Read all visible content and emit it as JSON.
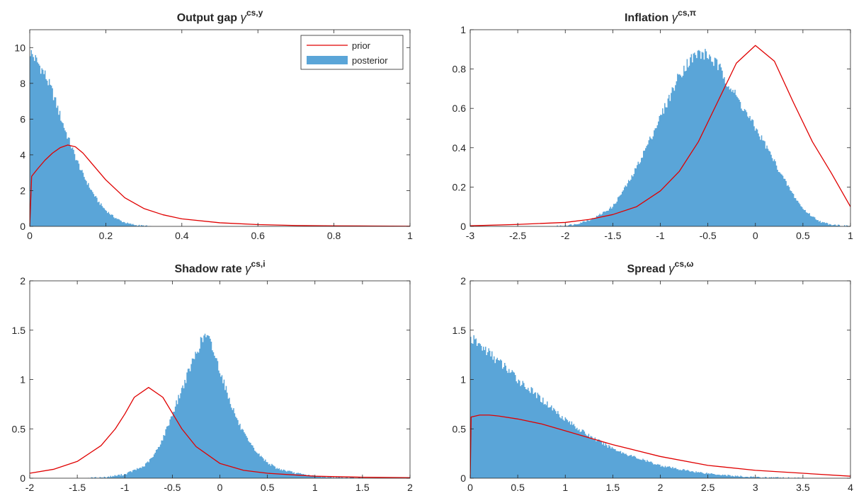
{
  "colors": {
    "prior": "#e00000",
    "posterior": "#5aa5d8",
    "axis": "#262626",
    "background": "#ffffff"
  },
  "chart_data": [
    {
      "type": "area",
      "title": "Output gap",
      "title_symbol": "γ",
      "title_superscript": "cs,y",
      "xlim": [
        0,
        1
      ],
      "ylim": [
        0,
        11
      ],
      "xticks": [
        0,
        0.2,
        0.4,
        0.6,
        0.8,
        1
      ],
      "xtick_labels": [
        "0",
        "0.2",
        "0.4",
        "0.6",
        "0.8",
        "1"
      ],
      "yticks": [
        0,
        2,
        4,
        6,
        8,
        10
      ],
      "ytick_labels": [
        "0",
        "2",
        "4",
        "6",
        "8",
        "10"
      ],
      "legend": {
        "position": "top-right",
        "entries": [
          "prior",
          "posterior"
        ]
      },
      "series": [
        {
          "name": "posterior",
          "kind": "histogram",
          "x": [
            0,
            0.02,
            0.04,
            0.06,
            0.08,
            0.1,
            0.12,
            0.14,
            0.16,
            0.18,
            0.2,
            0.22,
            0.24,
            0.26,
            0.28,
            0.3,
            0.32
          ],
          "y": [
            9.8,
            9.2,
            8.5,
            7.5,
            6.2,
            5.0,
            3.9,
            2.9,
            2.1,
            1.4,
            0.9,
            0.55,
            0.3,
            0.15,
            0.07,
            0.03,
            0.0
          ]
        },
        {
          "name": "prior",
          "kind": "line",
          "x": [
            0,
            0.005,
            0.02,
            0.04,
            0.06,
            0.08,
            0.1,
            0.12,
            0.14,
            0.16,
            0.18,
            0.2,
            0.25,
            0.3,
            0.35,
            0.4,
            0.5,
            0.6,
            0.7,
            0.8,
            0.9,
            1.0
          ],
          "y": [
            0,
            2.8,
            3.2,
            3.7,
            4.1,
            4.4,
            4.55,
            4.45,
            4.1,
            3.6,
            3.1,
            2.6,
            1.6,
            1.0,
            0.65,
            0.42,
            0.2,
            0.1,
            0.05,
            0.03,
            0.02,
            0.01
          ]
        }
      ]
    },
    {
      "type": "area",
      "title": "Inflation",
      "title_symbol": "γ",
      "title_superscript": "cs,π",
      "xlim": [
        -3,
        1
      ],
      "ylim": [
        0,
        1
      ],
      "xticks": [
        -3,
        -2.5,
        -2,
        -1.5,
        -1,
        -0.5,
        0,
        0.5,
        1
      ],
      "xtick_labels": [
        "-3",
        "-2.5",
        "-2",
        "-1.5",
        "-1",
        "-0.5",
        "0",
        "0.5",
        "1"
      ],
      "yticks": [
        0,
        0.2,
        0.4,
        0.6,
        0.8,
        1
      ],
      "ytick_labels": [
        "0",
        "0.2",
        "0.4",
        "0.6",
        "0.8",
        "1"
      ],
      "series": [
        {
          "name": "posterior",
          "kind": "histogram",
          "x": [
            -2.1,
            -1.9,
            -1.7,
            -1.5,
            -1.3,
            -1.1,
            -0.9,
            -0.8,
            -0.7,
            -0.6,
            -0.5,
            -0.4,
            -0.3,
            -0.2,
            -0.1,
            0.0,
            0.1,
            0.2,
            0.3,
            0.4,
            0.5,
            0.6,
            0.7,
            0.8,
            1.0
          ],
          "y": [
            0.0,
            0.01,
            0.04,
            0.1,
            0.25,
            0.45,
            0.66,
            0.77,
            0.84,
            0.88,
            0.87,
            0.82,
            0.74,
            0.66,
            0.58,
            0.5,
            0.42,
            0.33,
            0.24,
            0.16,
            0.09,
            0.05,
            0.02,
            0.01,
            0.0
          ]
        },
        {
          "name": "prior",
          "kind": "line",
          "x": [
            -3,
            -2.5,
            -2,
            -1.75,
            -1.5,
            -1.25,
            -1,
            -0.8,
            -0.6,
            -0.4,
            -0.2,
            0,
            0.2,
            0.4,
            0.6,
            0.8,
            1.0
          ],
          "y": [
            0.003,
            0.01,
            0.02,
            0.035,
            0.06,
            0.1,
            0.18,
            0.28,
            0.43,
            0.63,
            0.83,
            0.92,
            0.84,
            0.63,
            0.43,
            0.27,
            0.1
          ]
        }
      ]
    },
    {
      "type": "area",
      "title": "Shadow rate",
      "title_symbol": "γ",
      "title_superscript": "cs,i",
      "xlim": [
        -2,
        2
      ],
      "ylim": [
        0,
        2
      ],
      "xticks": [
        -2,
        -1.5,
        -1,
        -0.5,
        0,
        0.5,
        1,
        1.5,
        2
      ],
      "xtick_labels": [
        "-2",
        "-1.5",
        "-1",
        "-0.5",
        "0",
        "0.5",
        "1",
        "1.5",
        "2"
      ],
      "yticks": [
        0,
        0.5,
        1,
        1.5,
        2
      ],
      "ytick_labels": [
        "0",
        "0.5",
        "1",
        "1.5",
        "2"
      ],
      "series": [
        {
          "name": "posterior",
          "kind": "histogram",
          "x": [
            -1.4,
            -1.2,
            -1.0,
            -0.8,
            -0.7,
            -0.6,
            -0.5,
            -0.4,
            -0.3,
            -0.2,
            -0.15,
            -0.1,
            0.0,
            0.1,
            0.2,
            0.3,
            0.4,
            0.5,
            0.6,
            0.8,
            1.0,
            1.2,
            1.5
          ],
          "y": [
            0.0,
            0.01,
            0.04,
            0.12,
            0.22,
            0.4,
            0.65,
            0.9,
            1.15,
            1.38,
            1.45,
            1.38,
            1.1,
            0.8,
            0.55,
            0.37,
            0.25,
            0.16,
            0.1,
            0.05,
            0.02,
            0.01,
            0.0
          ]
        },
        {
          "name": "prior",
          "kind": "line",
          "x": [
            -2,
            -1.75,
            -1.5,
            -1.25,
            -1.1,
            -1.0,
            -0.9,
            -0.75,
            -0.6,
            -0.5,
            -0.4,
            -0.25,
            0,
            0.25,
            0.5,
            1.0,
            1.5,
            2.0
          ],
          "y": [
            0.05,
            0.09,
            0.17,
            0.33,
            0.5,
            0.65,
            0.82,
            0.92,
            0.82,
            0.66,
            0.5,
            0.32,
            0.15,
            0.08,
            0.05,
            0.02,
            0.01,
            0.005
          ]
        }
      ]
    },
    {
      "type": "area",
      "title": "Spread",
      "title_symbol": "γ",
      "title_superscript": "cs,ω",
      "xlim": [
        0,
        4
      ],
      "ylim": [
        0,
        2
      ],
      "xticks": [
        0,
        0.5,
        1,
        1.5,
        2,
        2.5,
        3,
        3.5,
        4
      ],
      "xtick_labels": [
        "0",
        "0.5",
        "1",
        "1.5",
        "2",
        "2.5",
        "3",
        "3.5",
        "4"
      ],
      "yticks": [
        0,
        0.5,
        1,
        1.5,
        2
      ],
      "ytick_labels": [
        "0",
        "0.5",
        "1",
        "1.5",
        "2"
      ],
      "series": [
        {
          "name": "posterior",
          "kind": "histogram",
          "x": [
            0,
            0.1,
            0.2,
            0.3,
            0.4,
            0.5,
            0.6,
            0.7,
            0.8,
            0.9,
            1.0,
            1.2,
            1.4,
            1.6,
            1.8,
            2.0,
            2.2,
            2.4,
            2.6,
            2.8,
            3.0,
            3.5
          ],
          "y": [
            1.42,
            1.35,
            1.27,
            1.18,
            1.1,
            1.0,
            0.92,
            0.84,
            0.76,
            0.68,
            0.6,
            0.46,
            0.35,
            0.26,
            0.19,
            0.13,
            0.09,
            0.06,
            0.04,
            0.02,
            0.01,
            0.0
          ]
        },
        {
          "name": "prior",
          "kind": "line",
          "x": [
            0,
            0.01,
            0.1,
            0.2,
            0.3,
            0.5,
            0.75,
            1.0,
            1.5,
            2.0,
            2.5,
            3.0,
            3.5,
            4.0
          ],
          "y": [
            0,
            0.62,
            0.64,
            0.64,
            0.63,
            0.6,
            0.55,
            0.48,
            0.34,
            0.22,
            0.13,
            0.08,
            0.05,
            0.02
          ]
        }
      ]
    }
  ]
}
